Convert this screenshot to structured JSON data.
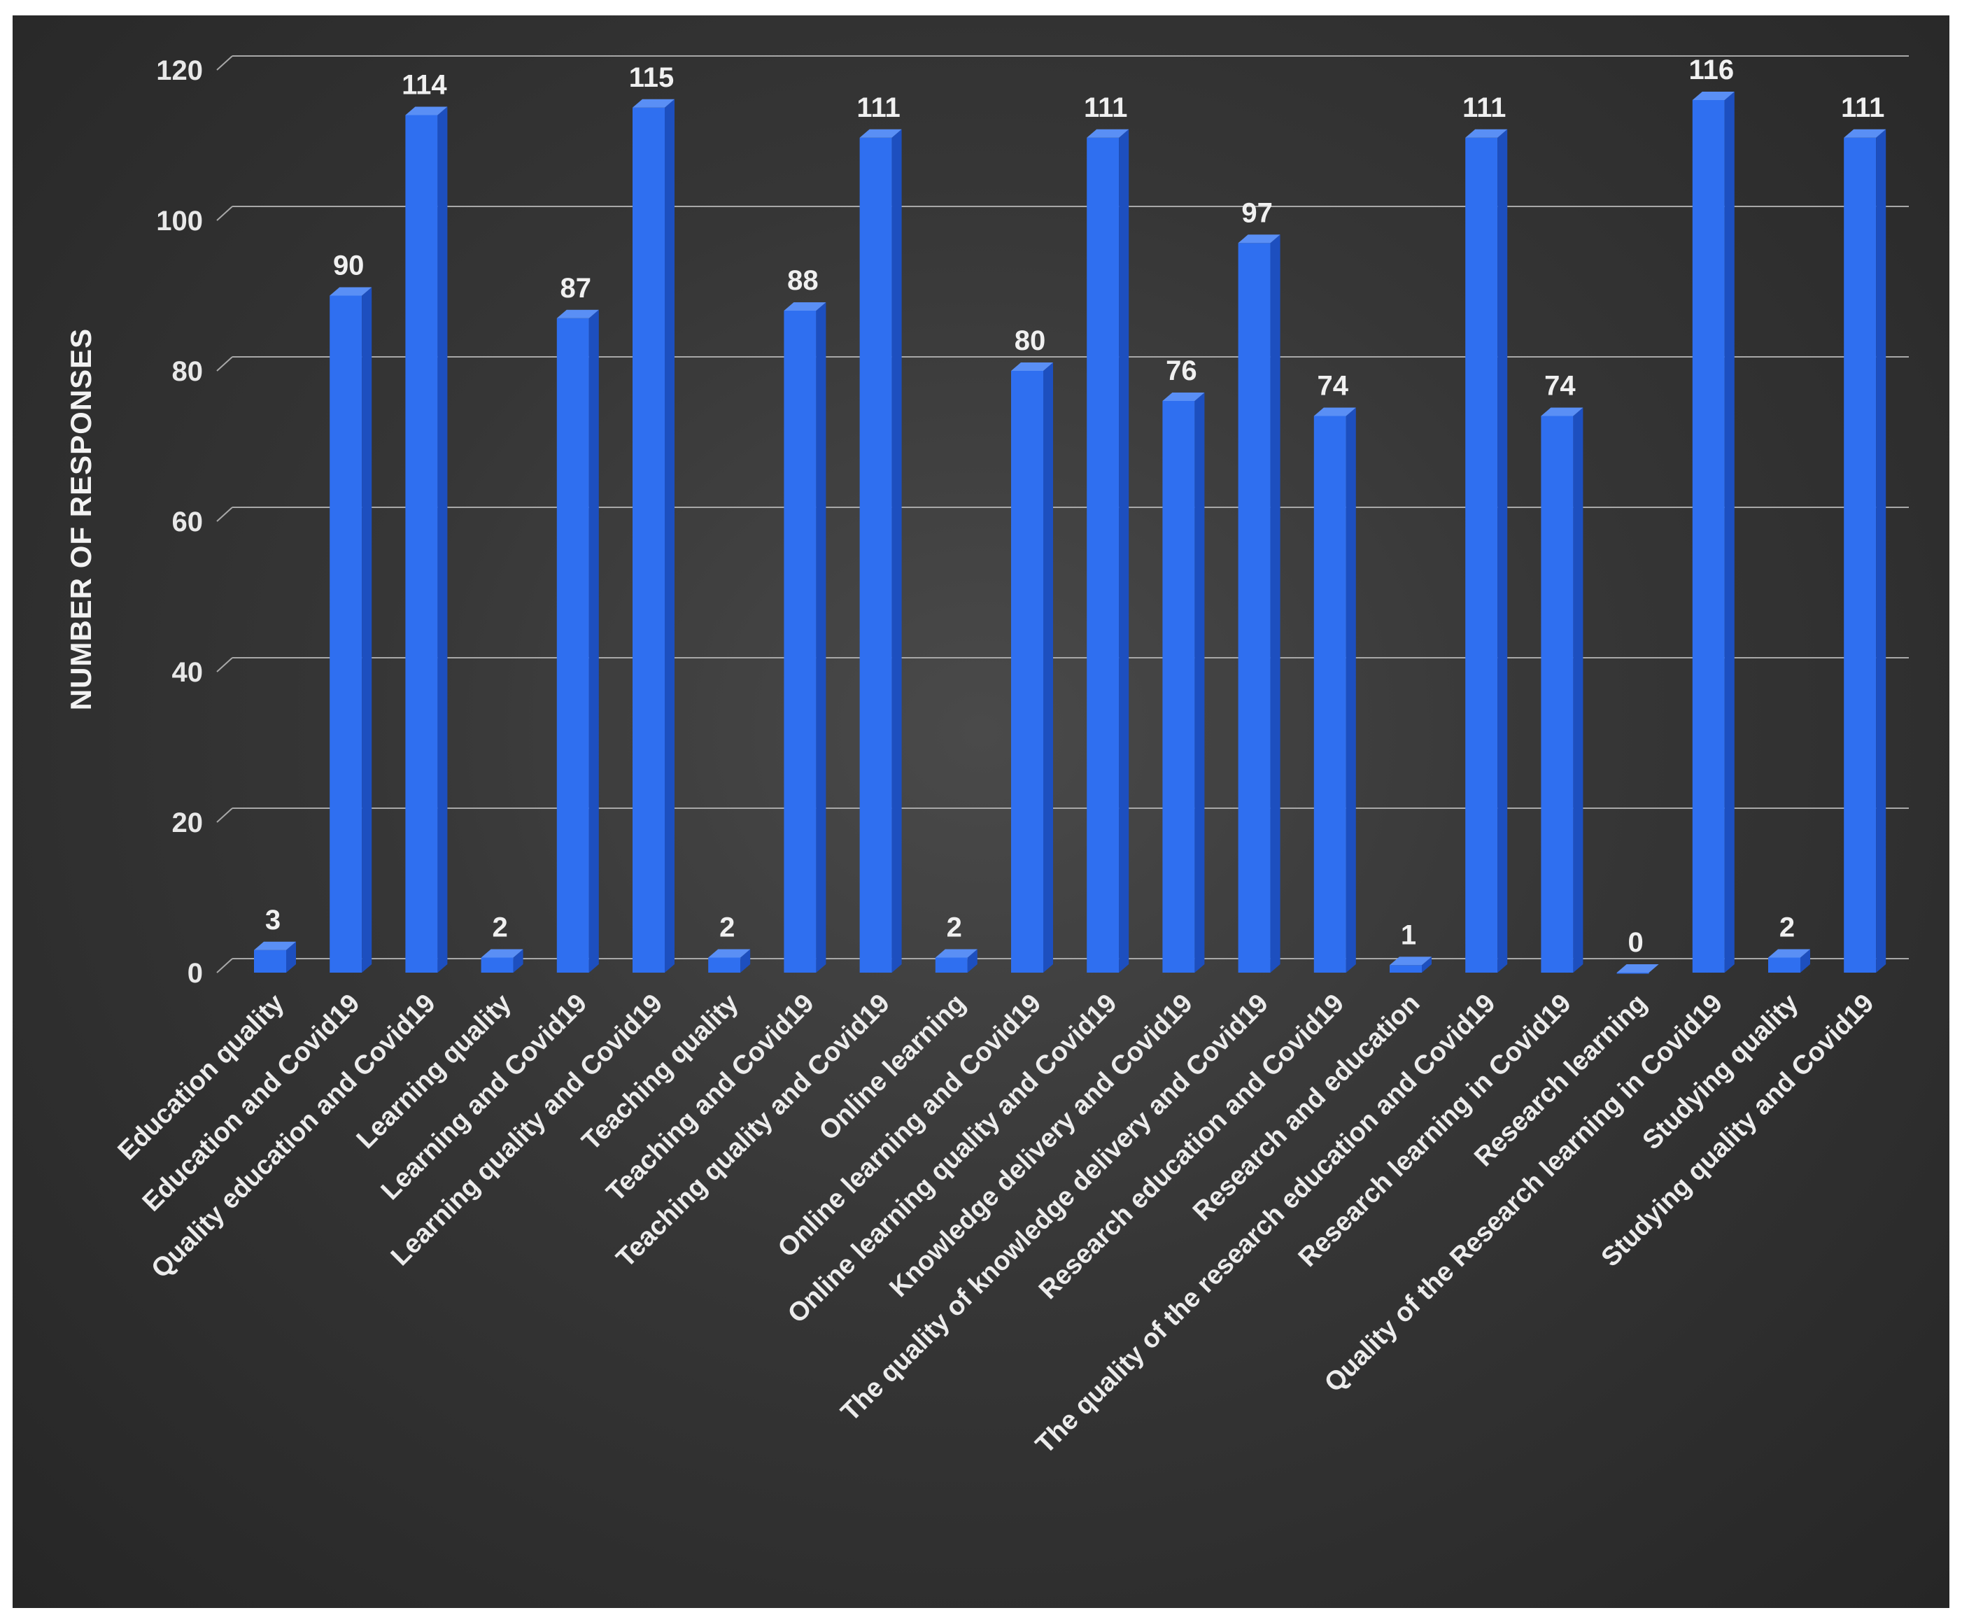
{
  "chart_data": {
    "type": "bar",
    "title": "",
    "xlabel": "",
    "ylabel": "NUMBER OF RESPONSES",
    "ylim": [
      0,
      120
    ],
    "yticks": [
      0,
      20,
      40,
      60,
      80,
      100,
      120
    ],
    "grid": true,
    "legend": "none",
    "categories": [
      "Education quality",
      "Education and Covid19",
      "Quality education and Covid19",
      "Learning quality",
      "Learning and Covid19",
      "Learning quality and Covid19",
      "Teaching quality",
      "Teaching and Covid19",
      "Teaching quality and Covid19",
      "Online learning",
      "Online learning and Covid19",
      "Online learning quality and Covid19",
      "Knowledge delivery and Covid19",
      "The quality of knowledge delivery and Covid19",
      "Research education and Covid19",
      "Research and education",
      "The quality of the research education and Covid19",
      "Research learning in Covid19",
      "Research learning",
      "Quality of the Research learning in Covid19",
      "Studying quality",
      "Studying quality and Covid19"
    ],
    "values": [
      3,
      90,
      114,
      2,
      87,
      115,
      2,
      88,
      111,
      2,
      80,
      111,
      76,
      97,
      74,
      1,
      111,
      74,
      0,
      116,
      2,
      111
    ],
    "colors": {
      "bar_front": "#2f6ff0",
      "bar_side": "#1d4fbf",
      "bar_top": "#5a8ff5",
      "grid": "#a8a8a8",
      "text": "#ececec"
    }
  }
}
